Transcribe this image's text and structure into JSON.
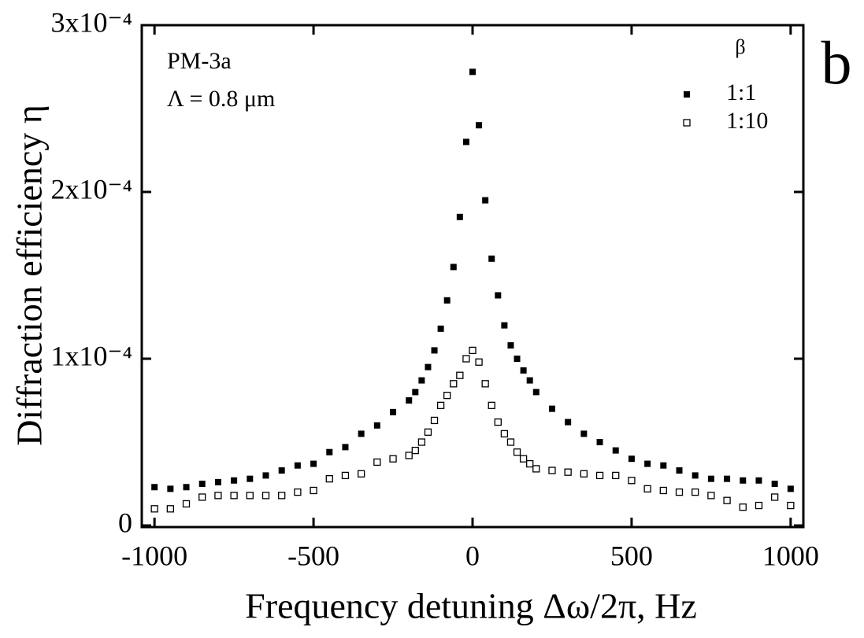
{
  "chart_data": {
    "type": "scatter",
    "panel_label": "b",
    "annotations": [
      "PM-3a",
      "Λ = 0.8 μm"
    ],
    "x_label": "Frequency detuning Δω/2π, Hz",
    "y_label": "Diffraction efficiency  η",
    "x": [
      -1000,
      -950,
      -900,
      -850,
      -800,
      -750,
      -700,
      -650,
      -600,
      -550,
      -500,
      -450,
      -400,
      -350,
      -300,
      -250,
      -200,
      -180,
      -160,
      -140,
      -120,
      -100,
      -80,
      -60,
      -40,
      -20,
      0,
      20,
      40,
      60,
      80,
      100,
      120,
      140,
      160,
      180,
      200,
      250,
      300,
      350,
      400,
      450,
      500,
      550,
      600,
      650,
      700,
      750,
      800,
      850,
      900,
      950,
      1000
    ],
    "series": [
      {
        "name": "1:1",
        "color": "#000000",
        "marker": "filled-square",
        "values": [
          2.3e-05,
          2.2e-05,
          2.3e-05,
          2.5e-05,
          2.6e-05,
          2.7e-05,
          2.8e-05,
          3e-05,
          3.3e-05,
          3.6e-05,
          3.7e-05,
          4.4e-05,
          4.7e-05,
          5.5e-05,
          6e-05,
          6.8e-05,
          7.5e-05,
          8e-05,
          8.7e-05,
          9.5e-05,
          0.000105,
          0.000118,
          0.000135,
          0.000155,
          0.000185,
          0.00023,
          0.000272,
          0.00024,
          0.000195,
          0.00016,
          0.000138,
          0.00012,
          0.000108,
          0.0001,
          9.3e-05,
          8.7e-05,
          8e-05,
          7e-05,
          6.2e-05,
          5.5e-05,
          5e-05,
          4.5e-05,
          4e-05,
          3.7e-05,
          3.6e-05,
          3.3e-05,
          3e-05,
          2.8e-05,
          2.8e-05,
          2.7e-05,
          2.7e-05,
          2.5e-05,
          2.2e-05
        ]
      },
      {
        "name": "1:10",
        "color": "#000000",
        "marker": "open-square",
        "values": [
          1e-05,
          1e-05,
          1.3e-05,
          1.7e-05,
          1.8e-05,
          1.8e-05,
          1.8e-05,
          1.8e-05,
          1.8e-05,
          2e-05,
          2.1e-05,
          2.8e-05,
          3e-05,
          3.1e-05,
          3.8e-05,
          4e-05,
          4.2e-05,
          4.5e-05,
          5e-05,
          5.6e-05,
          6.3e-05,
          7.2e-05,
          7.8e-05,
          8.5e-05,
          9e-05,
          0.0001,
          0.000105,
          9.8e-05,
          8.5e-05,
          7.2e-05,
          6.2e-05,
          5.5e-05,
          5e-05,
          4.4e-05,
          4e-05,
          3.7e-05,
          3.4e-05,
          3.3e-05,
          3.2e-05,
          3.1e-05,
          3e-05,
          3e-05,
          2.7e-05,
          2.2e-05,
          2.1e-05,
          2e-05,
          2e-05,
          1.8e-05,
          1.5e-05,
          1.1e-05,
          1.2e-05,
          1.7e-05,
          1.2e-05
        ]
      }
    ],
    "legend_title": "β",
    "legend": "top-right",
    "xlim": [
      -1040,
      1040
    ],
    "xticks": [
      -1000,
      -500,
      0,
      500,
      1000
    ],
    "ylim": [
      0,
      0.0003
    ],
    "yticks": [
      0,
      {
        "value": 0.0001,
        "label": "1x10⁻⁴"
      },
      {
        "value": 0.0002,
        "label": "2x10⁻⁴"
      },
      {
        "value": 0.0003,
        "label": "3x10⁻⁴"
      }
    ],
    "grid": false
  }
}
